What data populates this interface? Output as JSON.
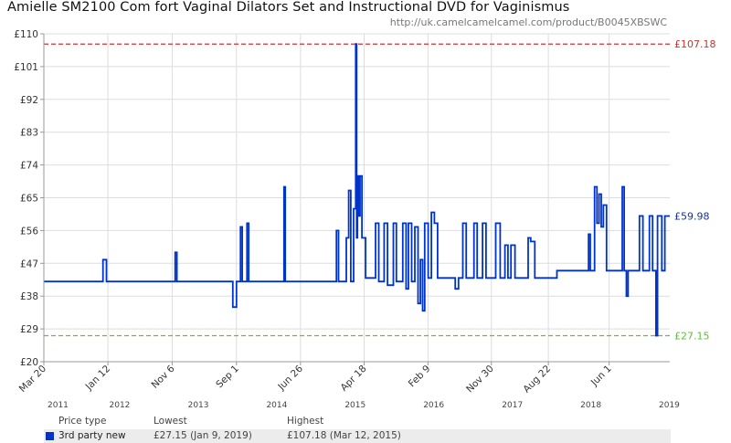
{
  "header": {
    "title": "Amielle SM2100 Com fort Vaginal Dilators Set and Instructional DVD for Vaginismus",
    "url": "http://uk.camelcamelcamel.com/product/B0045XBSWC"
  },
  "chart_data": {
    "type": "line",
    "title": "Amielle SM2100 Com fort Vaginal Dilators Set and Instructional DVD for Vaginismus",
    "ylim": [
      20,
      110
    ],
    "y_ticks": [
      "£20",
      "£29",
      "£38",
      "£47",
      "£56",
      "£65",
      "£74",
      "£83",
      "£92",
      "£101",
      "£110"
    ],
    "y_tick_values": [
      20,
      29,
      38,
      47,
      56,
      65,
      74,
      83,
      92,
      101,
      110
    ],
    "xlim": [
      "2011-03-20",
      "2019-03-10"
    ],
    "x_ticks": [
      {
        "label": "Mar 20",
        "date": "2011-03-20"
      },
      {
        "label": "Jan 12",
        "date": "2012-01-12"
      },
      {
        "label": "Nov 6",
        "date": "2012-11-06"
      },
      {
        "label": "Sep 1",
        "date": "2013-09-01"
      },
      {
        "label": "Jun 26",
        "date": "2014-06-26"
      },
      {
        "label": "Apr 18",
        "date": "2015-04-18"
      },
      {
        "label": "Feb 9",
        "date": "2016-02-09"
      },
      {
        "label": "Nov 30",
        "date": "2016-11-30"
      },
      {
        "label": "Aug 22",
        "date": "2017-08-22"
      },
      {
        "label": "Jun 1",
        "date": "2018-06-01"
      }
    ],
    "year_labels": [
      {
        "label": "2011",
        "date": "2011-03-20"
      },
      {
        "label": "2012",
        "date": "2012-01-01"
      },
      {
        "label": "2013",
        "date": "2013-01-01"
      },
      {
        "label": "2014",
        "date": "2014-01-01"
      },
      {
        "label": "2015",
        "date": "2015-01-01"
      },
      {
        "label": "2016",
        "date": "2016-01-01"
      },
      {
        "label": "2017",
        "date": "2017-01-01"
      },
      {
        "label": "2018",
        "date": "2018-01-01"
      },
      {
        "label": "2019",
        "date": "2019-01-01"
      }
    ],
    "grid": true,
    "reference_lines": [
      {
        "value": 107.18,
        "label": "£107.18",
        "color": "#cc3333",
        "style": "dashed"
      },
      {
        "value": 27.15,
        "label": "£27.15",
        "color": "#66bb44",
        "style": "dashed"
      }
    ],
    "current_value": {
      "value": 59.98,
      "label": "£59.98",
      "color": "#1133aa"
    },
    "series": [
      {
        "name": "3rd party new",
        "color": "#0033cc",
        "points": [
          [
            "2011-03-20",
            42
          ],
          [
            "2011-12-20",
            42
          ],
          [
            "2011-12-20",
            48
          ],
          [
            "2012-01-05",
            48
          ],
          [
            "2012-01-05",
            42
          ],
          [
            "2012-11-20",
            42
          ],
          [
            "2012-11-20",
            50
          ],
          [
            "2012-11-28",
            50
          ],
          [
            "2012-11-28",
            42
          ],
          [
            "2013-08-15",
            42
          ],
          [
            "2013-08-15",
            35
          ],
          [
            "2013-09-01",
            35
          ],
          [
            "2013-09-01",
            42
          ],
          [
            "2013-09-20",
            42
          ],
          [
            "2013-09-20",
            57
          ],
          [
            "2013-09-28",
            57
          ],
          [
            "2013-09-28",
            42
          ],
          [
            "2013-10-20",
            42
          ],
          [
            "2013-10-20",
            58
          ],
          [
            "2013-10-28",
            58
          ],
          [
            "2013-10-28",
            42
          ],
          [
            "2014-04-10",
            42
          ],
          [
            "2014-04-10",
            68
          ],
          [
            "2014-04-16",
            68
          ],
          [
            "2014-04-16",
            42
          ],
          [
            "2014-12-10",
            42
          ],
          [
            "2014-12-10",
            56
          ],
          [
            "2014-12-20",
            56
          ],
          [
            "2014-12-20",
            42
          ],
          [
            "2015-01-25",
            42
          ],
          [
            "2015-01-25",
            54
          ],
          [
            "2015-02-05",
            54
          ],
          [
            "2015-02-05",
            67
          ],
          [
            "2015-02-15",
            67
          ],
          [
            "2015-02-15",
            42
          ],
          [
            "2015-02-28",
            42
          ],
          [
            "2015-02-28",
            62
          ],
          [
            "2015-03-10",
            62
          ],
          [
            "2015-03-10",
            107.18
          ],
          [
            "2015-03-14",
            107.18
          ],
          [
            "2015-03-14",
            54
          ],
          [
            "2015-03-18",
            54
          ],
          [
            "2015-03-18",
            71
          ],
          [
            "2015-03-24",
            71
          ],
          [
            "2015-03-24",
            60
          ],
          [
            "2015-03-30",
            60
          ],
          [
            "2015-03-30",
            71
          ],
          [
            "2015-04-08",
            71
          ],
          [
            "2015-04-08",
            54
          ],
          [
            "2015-04-25",
            54
          ],
          [
            "2015-04-25",
            43
          ],
          [
            "2015-06-10",
            43
          ],
          [
            "2015-06-10",
            58
          ],
          [
            "2015-06-25",
            58
          ],
          [
            "2015-06-25",
            42
          ],
          [
            "2015-07-20",
            42
          ],
          [
            "2015-07-20",
            58
          ],
          [
            "2015-08-05",
            58
          ],
          [
            "2015-08-05",
            41
          ],
          [
            "2015-09-01",
            41
          ],
          [
            "2015-09-01",
            58
          ],
          [
            "2015-09-15",
            58
          ],
          [
            "2015-09-15",
            42
          ],
          [
            "2015-10-15",
            42
          ],
          [
            "2015-10-15",
            58
          ],
          [
            "2015-10-30",
            58
          ],
          [
            "2015-10-30",
            40
          ],
          [
            "2015-11-10",
            40
          ],
          [
            "2015-11-10",
            58
          ],
          [
            "2015-11-25",
            58
          ],
          [
            "2015-11-25",
            42
          ],
          [
            "2015-12-10",
            42
          ],
          [
            "2015-12-10",
            57
          ],
          [
            "2015-12-25",
            57
          ],
          [
            "2015-12-25",
            36
          ],
          [
            "2016-01-05",
            36
          ],
          [
            "2016-01-05",
            48
          ],
          [
            "2016-01-15",
            48
          ],
          [
            "2016-01-15",
            34
          ],
          [
            "2016-01-25",
            34
          ],
          [
            "2016-01-25",
            58
          ],
          [
            "2016-02-10",
            58
          ],
          [
            "2016-02-10",
            43
          ],
          [
            "2016-02-25",
            43
          ],
          [
            "2016-02-25",
            61
          ],
          [
            "2016-03-10",
            61
          ],
          [
            "2016-03-10",
            58
          ],
          [
            "2016-03-25",
            58
          ],
          [
            "2016-03-25",
            43
          ],
          [
            "2016-06-15",
            43
          ],
          [
            "2016-06-15",
            40
          ],
          [
            "2016-06-30",
            40
          ],
          [
            "2016-06-30",
            43
          ],
          [
            "2016-07-20",
            43
          ],
          [
            "2016-07-20",
            58
          ],
          [
            "2016-08-05",
            58
          ],
          [
            "2016-08-05",
            43
          ],
          [
            "2016-09-10",
            43
          ],
          [
            "2016-09-10",
            58
          ],
          [
            "2016-09-25",
            58
          ],
          [
            "2016-09-25",
            43
          ],
          [
            "2016-10-20",
            43
          ],
          [
            "2016-10-20",
            58
          ],
          [
            "2016-11-05",
            58
          ],
          [
            "2016-11-05",
            43
          ],
          [
            "2016-12-20",
            43
          ],
          [
            "2016-12-20",
            58
          ],
          [
            "2017-01-10",
            58
          ],
          [
            "2017-01-10",
            43
          ],
          [
            "2017-02-01",
            43
          ],
          [
            "2017-02-01",
            52
          ],
          [
            "2017-02-15",
            52
          ],
          [
            "2017-02-15",
            43
          ],
          [
            "2017-03-01",
            43
          ],
          [
            "2017-03-01",
            52
          ],
          [
            "2017-03-20",
            52
          ],
          [
            "2017-03-20",
            43
          ],
          [
            "2017-05-20",
            43
          ],
          [
            "2017-05-20",
            54
          ],
          [
            "2017-06-01",
            54
          ],
          [
            "2017-06-01",
            53
          ],
          [
            "2017-06-20",
            53
          ],
          [
            "2017-06-20",
            43
          ],
          [
            "2017-10-01",
            43
          ],
          [
            "2017-10-01",
            45
          ],
          [
            "2018-02-25",
            45
          ],
          [
            "2018-02-25",
            55
          ],
          [
            "2018-03-05",
            55
          ],
          [
            "2018-03-05",
            45
          ],
          [
            "2018-03-25",
            45
          ],
          [
            "2018-03-25",
            68
          ],
          [
            "2018-04-05",
            68
          ],
          [
            "2018-04-05",
            58
          ],
          [
            "2018-04-15",
            58
          ],
          [
            "2018-04-15",
            66
          ],
          [
            "2018-04-25",
            66
          ],
          [
            "2018-04-25",
            57
          ],
          [
            "2018-05-05",
            57
          ],
          [
            "2018-05-05",
            63
          ],
          [
            "2018-05-20",
            63
          ],
          [
            "2018-05-20",
            45
          ],
          [
            "2018-08-01",
            45
          ],
          [
            "2018-08-01",
            68
          ],
          [
            "2018-08-10",
            68
          ],
          [
            "2018-08-10",
            45
          ],
          [
            "2018-08-20",
            45
          ],
          [
            "2018-08-20",
            38
          ],
          [
            "2018-08-28",
            38
          ],
          [
            "2018-08-28",
            45
          ],
          [
            "2018-10-20",
            45
          ],
          [
            "2018-10-20",
            60
          ],
          [
            "2018-11-05",
            60
          ],
          [
            "2018-11-05",
            45
          ],
          [
            "2018-12-05",
            45
          ],
          [
            "2018-12-05",
            60
          ],
          [
            "2018-12-20",
            60
          ],
          [
            "2018-12-20",
            45
          ],
          [
            "2019-01-05",
            45
          ],
          [
            "2019-01-05",
            27.15
          ],
          [
            "2019-01-12",
            27.15
          ],
          [
            "2019-01-12",
            60
          ],
          [
            "2019-02-01",
            60
          ],
          [
            "2019-02-01",
            45
          ],
          [
            "2019-02-15",
            45
          ],
          [
            "2019-02-15",
            59.98
          ],
          [
            "2019-03-10",
            59.98
          ]
        ]
      }
    ]
  },
  "legend": {
    "headers": {
      "price_type": "Price type",
      "lowest": "Lowest",
      "highest": "Highest"
    },
    "rows": [
      {
        "label": "3rd party new",
        "lowest": "£27.15 (Jan 9, 2019)",
        "highest": "£107.18 (Mar 12, 2015)",
        "color": "#0033cc"
      }
    ]
  }
}
